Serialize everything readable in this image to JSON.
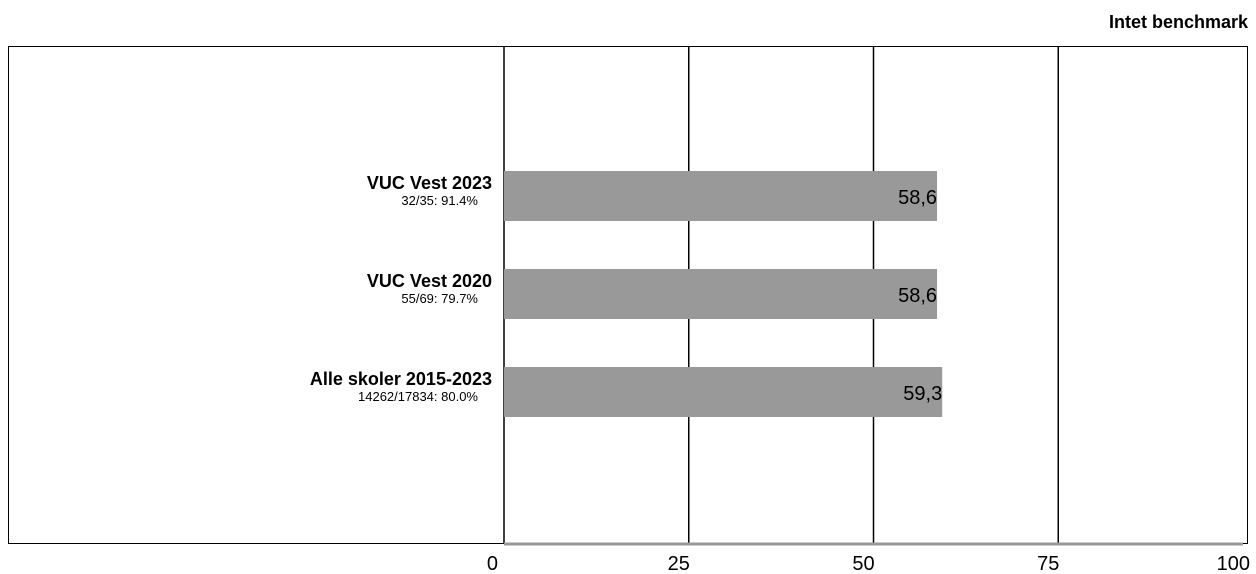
{
  "header": {
    "note": "Intet benchmark"
  },
  "chart_data": {
    "type": "bar",
    "orientation": "horizontal",
    "categories": [
      "VUC Vest 2023",
      "VUC Vest 2020",
      "Alle skoler 2015-2023"
    ],
    "category_details": [
      "32/35: 91.4%",
      "55/69: 79.7%",
      "14262/17834: 80.0%"
    ],
    "values": [
      58.6,
      58.6,
      59.3
    ],
    "value_labels": [
      "58,6",
      "58,6",
      "59,3"
    ],
    "x_ticks": [
      0,
      25,
      50,
      75,
      100
    ],
    "xlim": [
      0,
      100
    ],
    "grid": true,
    "bar_color": "#999999",
    "title": "",
    "xlabel": "",
    "ylabel": ""
  }
}
